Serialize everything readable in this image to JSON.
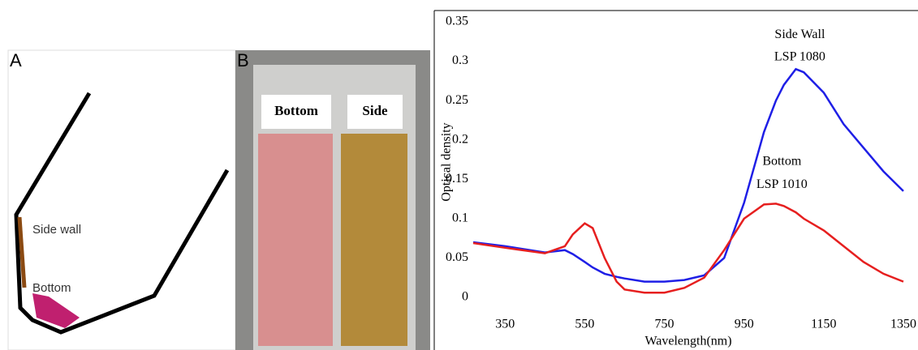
{
  "panel_a": {
    "letter": "A",
    "side_label": "Side wall",
    "bottom_label": "Bottom"
  },
  "panel_b": {
    "letter": "B",
    "left_label": "Bottom",
    "right_label": "Side"
  },
  "chart_data": {
    "type": "line",
    "x_label": "Wavelength(nm)",
    "y_label": "Optical density",
    "x": [
      270,
      350,
      450,
      500,
      520,
      550,
      570,
      600,
      630,
      650,
      700,
      750,
      800,
      850,
      900,
      950,
      1000,
      1030,
      1050,
      1080,
      1100,
      1150,
      1200,
      1250,
      1300,
      1350
    ],
    "series": [
      {
        "name": "Side Wall",
        "color": "#1f1fe6",
        "values": [
          0.07,
          0.065,
          0.057,
          0.06,
          0.055,
          0.045,
          0.038,
          0.03,
          0.026,
          0.024,
          0.02,
          0.02,
          0.022,
          0.028,
          0.05,
          0.12,
          0.21,
          0.25,
          0.27,
          0.29,
          0.286,
          0.26,
          0.22,
          0.19,
          0.16,
          0.135
        ]
      },
      {
        "name": "Bottom",
        "color": "#e61f1f",
        "values": [
          0.069,
          0.063,
          0.056,
          0.065,
          0.08,
          0.094,
          0.088,
          0.05,
          0.02,
          0.01,
          0.006,
          0.006,
          0.012,
          0.025,
          0.06,
          0.1,
          0.118,
          0.119,
          0.116,
          0.108,
          0.1,
          0.085,
          0.065,
          0.045,
          0.03,
          0.02
        ]
      }
    ],
    "annotations": [
      {
        "text": "Side Wall",
        "x": 1090,
        "y": 0.333
      },
      {
        "text": "LSP 1080",
        "x": 1090,
        "y": 0.305
      },
      {
        "text": "Bottom",
        "x": 1045,
        "y": 0.172
      },
      {
        "text": "LSP 1010",
        "x": 1045,
        "y": 0.143
      }
    ],
    "xlim": [
      270,
      1350
    ],
    "ylim": [
      0,
      0.35
    ],
    "xticks": [
      350,
      550,
      750,
      950,
      1150,
      1350
    ],
    "yticks": [
      0,
      0.05,
      0.1,
      0.15,
      0.2,
      0.25,
      0.3,
      0.35
    ]
  }
}
